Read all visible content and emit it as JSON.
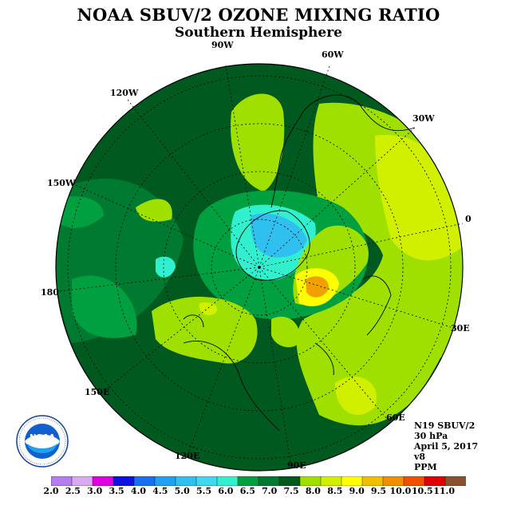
{
  "header": {
    "title": "NOAA SBUV/2 OZONE MIXING RATIO",
    "subtitle": "Southern Hemisphere"
  },
  "longitude_labels": [
    "90W",
    "60W",
    "30W",
    "0",
    "30E",
    "60E",
    "90E",
    "120E",
    "150E",
    "180",
    "150W",
    "120W"
  ],
  "info": {
    "satellite": "N19 SBUV/2",
    "level": "30 hPa",
    "date": "April 5, 2017",
    "version": "v8",
    "units": "PPM"
  },
  "logo": {
    "text": "NOAA",
    "ring_text": "NATIONAL OCEANIC AND ATMOSPHERIC ADMINISTRATION · U.S. DEPARTMENT OF COMMERCE"
  },
  "colorbar": {
    "labels": [
      "2.0",
      "2.5",
      "3.0",
      "3.5",
      "4.0",
      "4.5",
      "5.0",
      "5.5",
      "6.0",
      "6.5",
      "7.0",
      "7.5",
      "8.0",
      "8.5",
      "9.0",
      "9.5",
      "10.0",
      "10.5",
      "11.0"
    ],
    "colors": [
      "#b57ef0",
      "#d9aaf2",
      "#e000e0",
      "#1010e0",
      "#1870f0",
      "#20a0f0",
      "#30c0f0",
      "#40d8f0",
      "#30f0d0",
      "#00a040",
      "#007a30",
      "#005a20",
      "#a0e000",
      "#d0f000",
      "#ffff00",
      "#f0c000",
      "#f09000",
      "#f05000",
      "#e00000",
      "#8a5030"
    ]
  },
  "palette": {
    "dark_green": "#005a20",
    "mid_green": "#007a30",
    "light_green": "#00a040",
    "lime": "#a0e000",
    "yellow_green": "#d0f000",
    "yellow": "#ffff00",
    "orange": "#f0a000",
    "cyan": "#30f0d0",
    "light_blue": "#30c0f0"
  }
}
